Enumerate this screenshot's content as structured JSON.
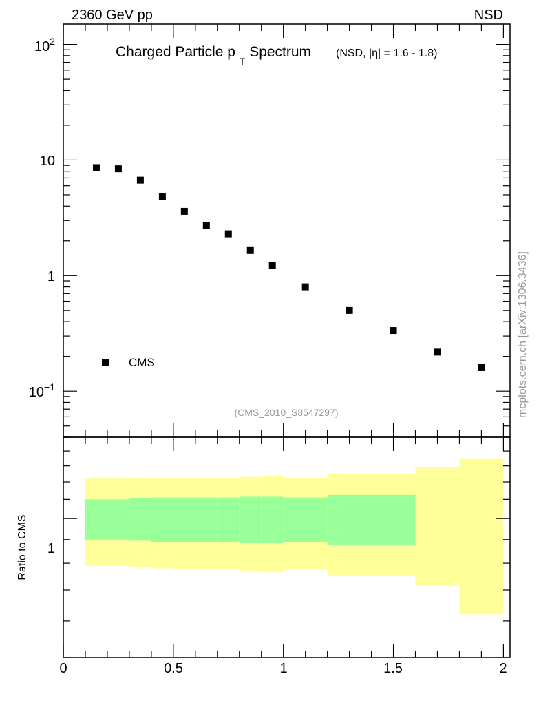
{
  "header": {
    "left": "2360 GeV pp",
    "right": "NSD",
    "side": "mcplots.cern.ch [arXiv:1306.3436]"
  },
  "colors": {
    "green": "#99ff99",
    "yellow": "#ffff99",
    "marker": "#000000",
    "grey": "#999999"
  },
  "chart_data": [
    {
      "type": "scatter",
      "title_main": "Charged Particle p",
      "title_sub": "T",
      "title_rest": "Spectrum",
      "title_extra": "(NSD, |η| = 1.6 - 1.8)",
      "analysis": "(CMS_2010_S8547297)",
      "yscale": "log",
      "ylim": [
        0.04,
        150
      ],
      "xlim": [
        0,
        2.03
      ],
      "ytick_labels": [
        "10^-1",
        "1",
        "10",
        "10^2"
      ],
      "legend": "CMS",
      "series": [
        {
          "name": "CMS",
          "x": [
            0.15,
            0.25,
            0.35,
            0.45,
            0.55,
            0.65,
            0.75,
            0.85,
            0.95,
            1.1,
            1.3,
            1.5,
            1.7,
            1.9
          ],
          "y": [
            8.6,
            8.4,
            6.7,
            4.8,
            3.6,
            2.7,
            2.3,
            1.65,
            1.22,
            0.8,
            0.5,
            0.335,
            0.218,
            0.16
          ]
        }
      ]
    },
    {
      "type": "area",
      "ylabel": "Ratio to CMS",
      "ytick_labels": [
        "1"
      ],
      "xtick_labels": [
        "0",
        "0.5",
        "1",
        "1.5",
        "2"
      ],
      "ylim": [
        0.5,
        1.5
      ],
      "bands": [
        {
          "xlo": 0.1,
          "xhi": 0.2,
          "ylo": 0.9,
          "yhi": 1.1,
          "yylo": 0.79,
          "yyhi": 1.22
        },
        {
          "xlo": 0.2,
          "xhi": 0.3,
          "ylo": 0.9,
          "yhi": 1.1,
          "yylo": 0.79,
          "yyhi": 1.22
        },
        {
          "xlo": 0.3,
          "xhi": 0.4,
          "ylo": 0.895,
          "yhi": 1.105,
          "yylo": 0.785,
          "yyhi": 1.225
        },
        {
          "xlo": 0.4,
          "xhi": 0.5,
          "ylo": 0.89,
          "yhi": 1.11,
          "yylo": 0.78,
          "yyhi": 1.225
        },
        {
          "xlo": 0.5,
          "xhi": 0.6,
          "ylo": 0.89,
          "yhi": 1.11,
          "yylo": 0.775,
          "yyhi": 1.225
        },
        {
          "xlo": 0.6,
          "xhi": 0.7,
          "ylo": 0.89,
          "yhi": 1.11,
          "yylo": 0.775,
          "yyhi": 1.225
        },
        {
          "xlo": 0.7,
          "xhi": 0.8,
          "ylo": 0.89,
          "yhi": 1.11,
          "yylo": 0.775,
          "yyhi": 1.225
        },
        {
          "xlo": 0.8,
          "xhi": 0.9,
          "ylo": 0.885,
          "yhi": 1.115,
          "yylo": 0.77,
          "yyhi": 1.23
        },
        {
          "xlo": 0.9,
          "xhi": 1.0,
          "ylo": 0.885,
          "yhi": 1.115,
          "yylo": 0.765,
          "yyhi": 1.235
        },
        {
          "xlo": 1.0,
          "xhi": 1.2,
          "ylo": 0.89,
          "yhi": 1.11,
          "yylo": 0.775,
          "yyhi": 1.225
        },
        {
          "xlo": 1.2,
          "xhi": 1.6,
          "ylo": 0.875,
          "yhi": 1.125,
          "yylo": 0.75,
          "yyhi": 1.25
        },
        {
          "xlo": 1.6,
          "xhi": 1.8,
          "ylo": null,
          "yhi": null,
          "yylo": 0.715,
          "yyhi": 1.29
        },
        {
          "xlo": 1.8,
          "xhi": 2.0,
          "ylo": null,
          "yhi": null,
          "yylo": 0.62,
          "yyhi": 1.35
        }
      ]
    }
  ]
}
